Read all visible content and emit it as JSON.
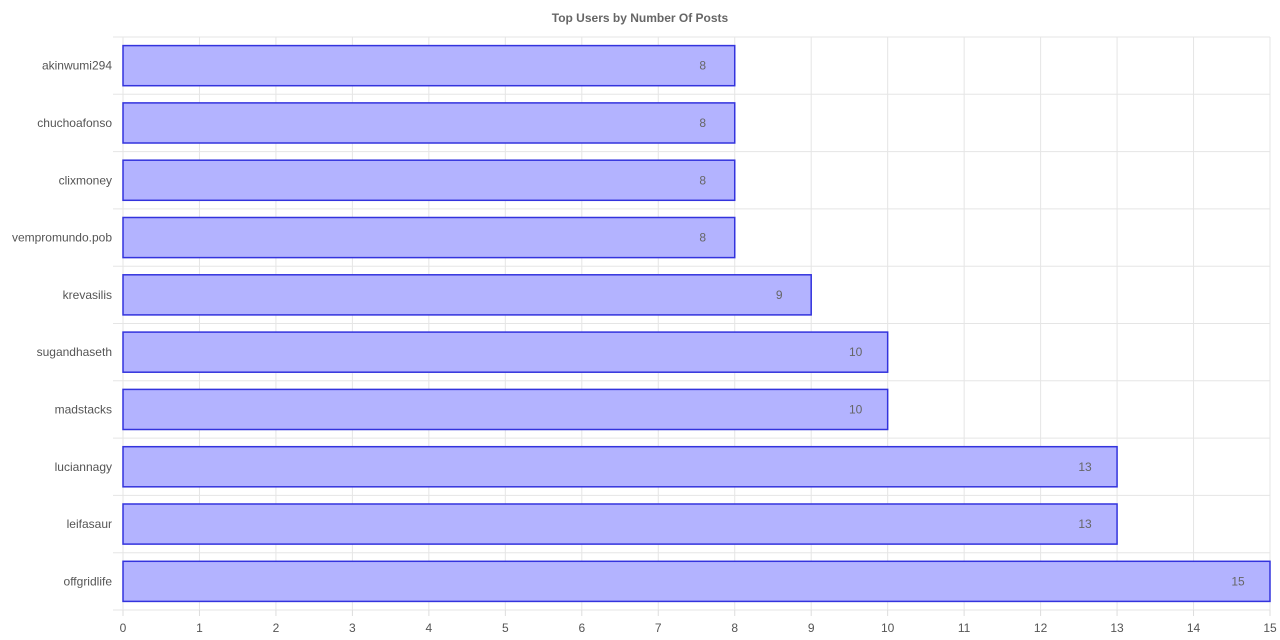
{
  "chart_data": {
    "type": "bar",
    "orientation": "horizontal",
    "title": "Top Users by Number Of Posts",
    "categories": [
      "akinwumi294",
      "chuchoafonso",
      "clixmoney",
      "vempromundo.pob",
      "krevasilis",
      "sugandhaseth",
      "madstacks",
      "luciannagy",
      "leifasaur",
      "offgridlife"
    ],
    "values": [
      8,
      8,
      8,
      8,
      9,
      10,
      10,
      13,
      13,
      15
    ],
    "xlim": [
      0,
      15
    ],
    "x_ticks": [
      0,
      1,
      2,
      3,
      4,
      5,
      6,
      7,
      8,
      9,
      10,
      11,
      12,
      13,
      14,
      15
    ],
    "grid": true,
    "data_labels": true,
    "bar_fill_color": "#b3b3ff",
    "bar_border_color": "#3333dd",
    "grid_color": "#e5e5e5"
  }
}
